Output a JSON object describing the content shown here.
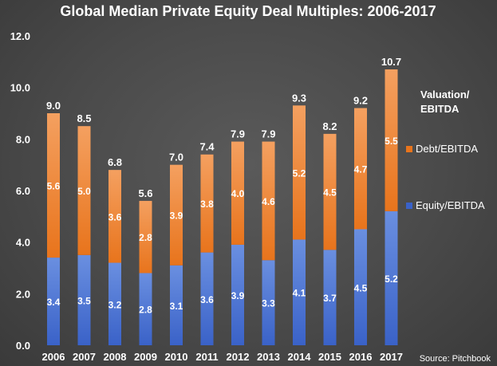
{
  "colors": {
    "debt_top": "#f4a060",
    "debt_bottom": "#e8741c",
    "equity_top": "#6a8fe0",
    "equity_bottom": "#3a62c8"
  },
  "source": "Source: Pitchbook",
  "chart_data": {
    "type": "bar",
    "stacked": true,
    "title": "Global Median Private Equity Deal Multiples: 2006-2017",
    "categories": [
      "2006",
      "2007",
      "2008",
      "2009",
      "2010",
      "2011",
      "2012",
      "2013",
      "2014",
      "2015",
      "2016",
      "2017"
    ],
    "series": [
      {
        "name": "Equity/EBITDA",
        "values": [
          3.4,
          3.5,
          3.2,
          2.8,
          3.1,
          3.6,
          3.9,
          3.3,
          4.1,
          3.7,
          4.5,
          5.2
        ]
      },
      {
        "name": "Debt/EBITDA",
        "values": [
          5.6,
          5.0,
          3.6,
          2.8,
          3.9,
          3.8,
          4.0,
          4.6,
          5.2,
          4.5,
          4.7,
          5.5
        ]
      }
    ],
    "totals": [
      "9.0",
      "8.5",
      "6.8",
      "5.6",
      "7.0",
      "7.4",
      "7.9",
      "7.9",
      "9.3",
      "8.2",
      "9.2",
      "10.7"
    ],
    "ylim": [
      0,
      12
    ],
    "yticks": [
      "0.0",
      "2.0",
      "4.0",
      "6.0",
      "8.0",
      "10.0",
      "12.0"
    ],
    "legend": {
      "title": "Valuation/ EBITDA",
      "placement": "right",
      "items": [
        "Debt/EBITDA",
        "Equity/EBITDA"
      ]
    },
    "grid": false
  }
}
